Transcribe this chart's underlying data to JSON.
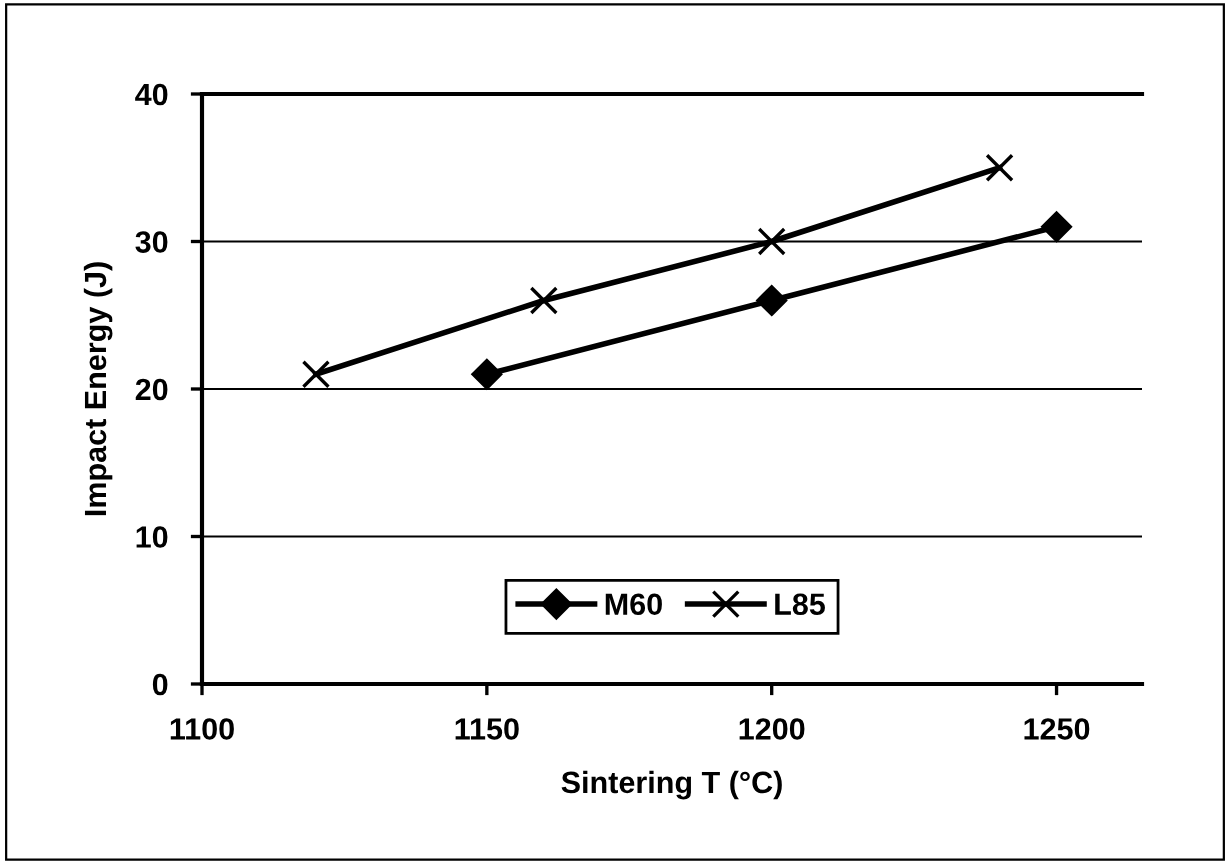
{
  "chart_data": {
    "type": "line",
    "xlabel": "Sintering T (°C)",
    "ylabel": "Impact Energy (J)",
    "xlim": [
      1100,
      1265
    ],
    "xticks": [
      1100,
      1150,
      1200,
      1250
    ],
    "ylim": [
      0,
      40
    ],
    "yticks": [
      0,
      10,
      20,
      30,
      40
    ],
    "grid": "y",
    "legend": "bottom",
    "series": [
      {
        "name": "M60",
        "color": "#000000",
        "marker": "diamond",
        "x": [
          1150,
          1200,
          1250
        ],
        "values": [
          21,
          26,
          31
        ]
      },
      {
        "name": "L85",
        "color": "#000000",
        "marker": "cross",
        "x": [
          1120,
          1160,
          1200,
          1240
        ],
        "values": [
          21,
          26,
          30,
          35
        ]
      }
    ]
  }
}
